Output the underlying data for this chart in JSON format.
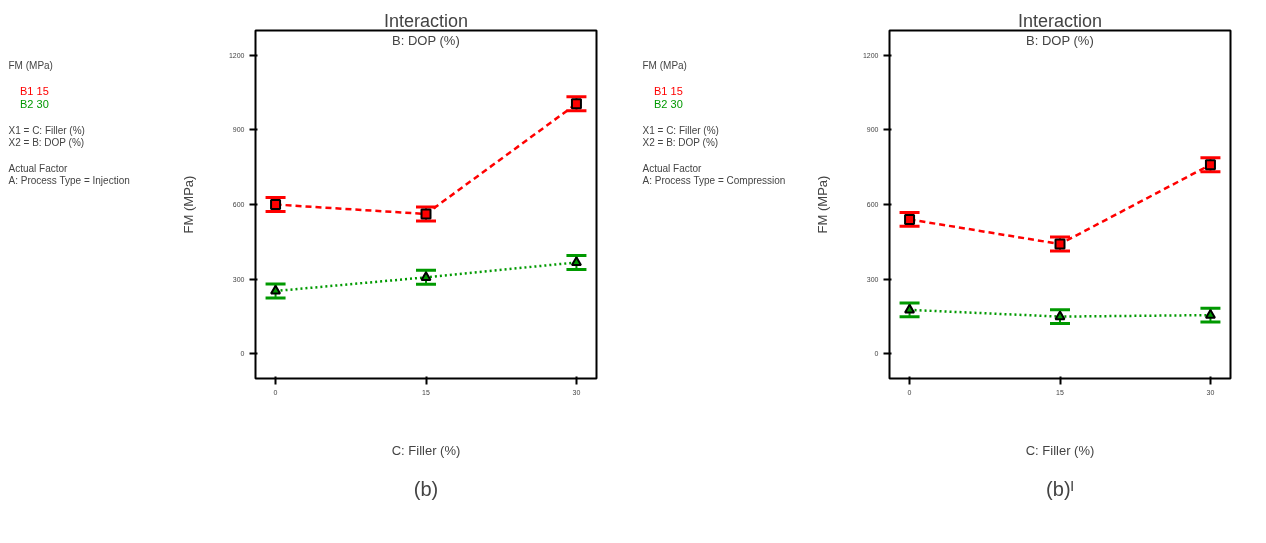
{
  "chart_data": [
    {
      "type": "line",
      "title": "Interaction",
      "subtitle": "B: DOP (%)",
      "xlabel": "C: Filler (%)",
      "ylabel": "FM (MPa)",
      "x": [
        0,
        15,
        30
      ],
      "xlim": [
        -2,
        32
      ],
      "xticks": [
        0,
        15,
        30
      ],
      "ylim": [
        -100,
        1300
      ],
      "yticks": [
        0,
        300,
        600,
        900,
        1200
      ],
      "grid": false,
      "legend": "left",
      "series": [
        {
          "name": "B1 15",
          "color": "#ff0000",
          "values": [
            600,
            562,
            1005
          ],
          "errors": [
            28,
            28,
            28
          ],
          "marker": "square",
          "line_style": "dashed"
        },
        {
          "name": "B2 30",
          "color": "#009900",
          "values": [
            252,
            307,
            367
          ],
          "errors": [
            28,
            28,
            28
          ],
          "marker": "triangle",
          "line_style": "dotted"
        }
      ],
      "annotations": [
        "FM (MPa)",
        "X1 = C: Filler (%)",
        "X2 = B: DOP (%)",
        "Actual Factor",
        "A: Process Type = Injection",
        "(b)"
      ]
    },
    {
      "type": "line",
      "title": "Interaction",
      "subtitle": "B: DOP (%)",
      "xlabel": "C: Filler (%)",
      "ylabel": "FM (MPa)",
      "x": [
        0,
        15,
        30
      ],
      "xlim": [
        -2,
        32
      ],
      "xticks": [
        0,
        15,
        30
      ],
      "ylim": [
        -100,
        1300
      ],
      "yticks": [
        0,
        300,
        600,
        900,
        1200
      ],
      "grid": false,
      "legend": "left",
      "series": [
        {
          "name": "B1 15",
          "color": "#ff0000",
          "values": [
            540,
            441,
            760
          ],
          "errors": [
            28,
            28,
            28
          ],
          "marker": "square",
          "line_style": "dashed"
        },
        {
          "name": "B2 30",
          "color": "#009900",
          "values": [
            176,
            149,
            155
          ],
          "errors": [
            28,
            28,
            28
          ],
          "marker": "triangle",
          "line_style": "dotted"
        }
      ],
      "annotations": [
        "FM (MPa)",
        "X1 = C: Filler (%)",
        "X2 = B: DOP (%)",
        "Actual Factor",
        "A: Process Type = Compression",
        "(b)ᴵ"
      ]
    }
  ]
}
